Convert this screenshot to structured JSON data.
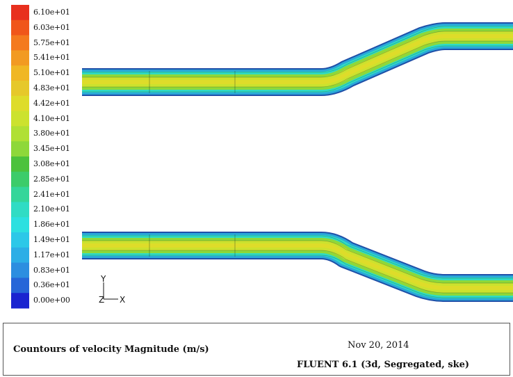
{
  "legend": {
    "levels": [
      {
        "label": "6.10e+01",
        "color": "#e8301e"
      },
      {
        "label": "6.03e+01",
        "color": "#f0561a"
      },
      {
        "label": "5.75e+01",
        "color": "#f47a1e"
      },
      {
        "label": "5.41e+01",
        "color": "#f29a22"
      },
      {
        "label": "5.10e+01",
        "color": "#f0b724"
      },
      {
        "label": "4.83e+01",
        "color": "#e6c82a"
      },
      {
        "label": "4.42e+01",
        "color": "#dedc2a"
      },
      {
        "label": "4.10e+01",
        "color": "#cce22e"
      },
      {
        "label": "3.80e+01",
        "color": "#b0e034"
      },
      {
        "label": "3.45e+01",
        "color": "#8ed83a"
      },
      {
        "label": "3.08e+01",
        "color": "#4cc23c"
      },
      {
        "label": "2.85e+01",
        "color": "#3ccc6a"
      },
      {
        "label": "2.41e+01",
        "color": "#34d69a"
      },
      {
        "label": "2.10e+01",
        "color": "#30dcc4"
      },
      {
        "label": "1.86e+01",
        "color": "#2ce0e0"
      },
      {
        "label": "1.49e+01",
        "color": "#2cc8e8"
      },
      {
        "label": "1.17e+01",
        "color": "#2caee6"
      },
      {
        "label": "0.83e+01",
        "color": "#2c8ee0"
      },
      {
        "label": "0.36e+01",
        "color": "#2666d8"
      },
      {
        "label": "0.00e+00",
        "color": "#1a24d0"
      }
    ]
  },
  "axes": {
    "y_label": "Y",
    "z_label": "Z",
    "x_label": "X"
  },
  "footer": {
    "title": "Countours of velocity Magnitude (m/s)",
    "date": "Nov 20, 2014",
    "solver": "FLUENT 6.1 (3d, Segregated, ske)"
  }
}
